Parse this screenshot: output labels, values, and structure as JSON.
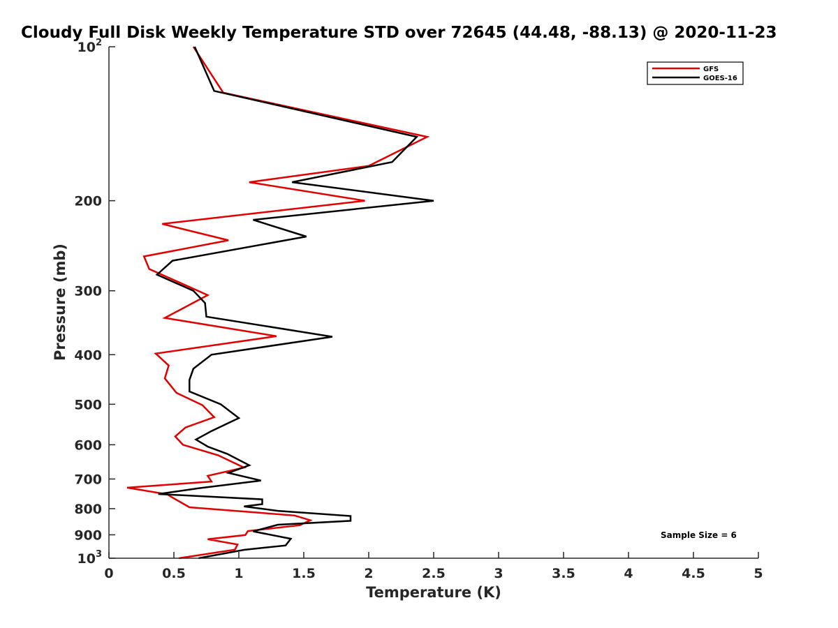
{
  "chart_data": {
    "type": "line",
    "title": "Cloudy Full Disk Weekly Temperature STD over 72645 (44.48, -88.13) @ 2020-11-23",
    "xlabel": "Temperature (K)",
    "ylabel": "Pressure (mb)",
    "xlim": [
      0,
      5
    ],
    "ylim": [
      100,
      1000
    ],
    "y_scale": "log",
    "y_reversed": true,
    "x_ticks": [
      "0",
      "0.5",
      "1",
      "1.5",
      "2",
      "2.5",
      "3",
      "3.5",
      "4",
      "4.5",
      "5"
    ],
    "y_ticks": [
      {
        "value": 100,
        "base": "10",
        "exp": "2"
      },
      {
        "value": 200,
        "label": "200"
      },
      {
        "value": 300,
        "label": "300"
      },
      {
        "value": 400,
        "label": "400"
      },
      {
        "value": 500,
        "label": "500"
      },
      {
        "value": 600,
        "label": "600"
      },
      {
        "value": 700,
        "label": "700"
      },
      {
        "value": 800,
        "label": "800"
      },
      {
        "value": 900,
        "label": "900"
      },
      {
        "value": 1000,
        "base": "10",
        "exp": "3"
      }
    ],
    "legend_position": "top-right",
    "grid": false,
    "annotation": "Sample Size = 6",
    "series": [
      {
        "name": "GFS",
        "color": "#e00000",
        "x": [
          0.65,
          0.88,
          2.45,
          2.0,
          1.08,
          1.97,
          0.41,
          0.92,
          0.27,
          0.31,
          0.76,
          0.43,
          1.29,
          0.36,
          0.46,
          0.43,
          0.52,
          0.72,
          0.81,
          0.59,
          0.51,
          0.57,
          0.84,
          1.04,
          0.76,
          0.79,
          0.14,
          0.45,
          0.47,
          0.62,
          1.43,
          1.55,
          1.47,
          1.07,
          1.05,
          0.76,
          0.99,
          0.97,
          0.54
        ],
        "y": [
          100,
          123,
          150,
          171,
          184,
          200,
          222,
          239,
          257,
          272,
          306,
          339,
          368,
          398,
          420,
          445,
          475,
          502,
          530,
          555,
          578,
          600,
          629,
          665,
          690,
          708,
          728,
          750,
          756,
          795,
          825,
          843,
          862,
          885,
          901,
          918,
          940,
          962,
          1000
        ]
      },
      {
        "name": "GOES-16",
        "color": "#000000",
        "x": [
          0.66,
          0.81,
          2.37,
          2.18,
          1.41,
          2.5,
          1.11,
          1.52,
          0.49,
          0.37,
          0.65,
          0.74,
          0.75,
          1.72,
          0.79,
          0.65,
          0.62,
          0.62,
          0.86,
          1.0,
          0.79,
          0.67,
          0.76,
          0.91,
          1.08,
          0.92,
          1.17,
          0.69,
          0.38,
          1.18,
          1.18,
          1.04,
          1.3,
          1.86,
          1.86,
          1.3,
          1.11,
          1.4,
          1.36,
          1.04,
          0.69
        ],
        "y": [
          100,
          122,
          150,
          168,
          184,
          200,
          218,
          235,
          262,
          279,
          300,
          317,
          337,
          369,
          400,
          426,
          448,
          472,
          500,
          532,
          564,
          586,
          605,
          625,
          658,
          681,
          705,
          730,
          749,
          767,
          784,
          792,
          808,
          827,
          845,
          860,
          886,
          916,
          944,
          963,
          1000
        ]
      }
    ]
  }
}
